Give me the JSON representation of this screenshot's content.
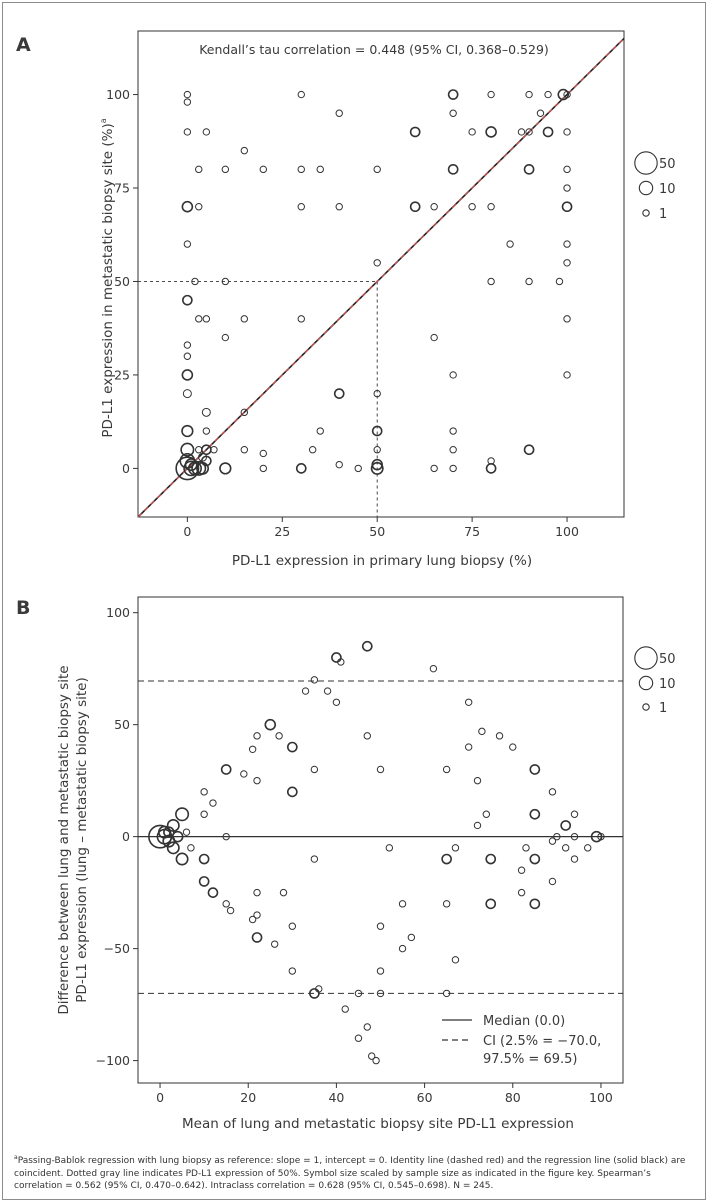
{
  "chart_data": [
    {
      "panel": "A",
      "type": "scatter",
      "title": "Kendall’s tau correlation = 0.448 (95% CI, 0.368–0.529)",
      "xlabel": "PD-L1 expression in primary lung biopsy (%)",
      "ylabel": "PD-L1 expression in metastatic biopsy site (%)",
      "ylabel_sup": "a",
      "xlim": [
        -13,
        115
      ],
      "ylim": [
        -13,
        117
      ],
      "xticks": [
        0,
        25,
        50,
        75,
        100
      ],
      "yticks": [
        0,
        25,
        50,
        75,
        100
      ],
      "reference_x": 50,
      "reference_y": 50,
      "identity_line": "y = x (dashed red), regression line (solid black)",
      "size_legend": [
        {
          "label": "50",
          "n": 50
        },
        {
          "label": "10",
          "n": 10
        },
        {
          "label": "1",
          "n": 1
        }
      ],
      "points": [
        [
          0,
          100,
          1
        ],
        [
          0,
          98,
          1
        ],
        [
          0,
          90,
          1
        ],
        [
          0,
          70,
          4
        ],
        [
          0,
          60,
          1
        ],
        [
          0,
          45,
          3
        ],
        [
          0,
          33,
          1
        ],
        [
          0,
          30,
          1
        ],
        [
          0,
          25,
          4
        ],
        [
          0,
          20,
          2
        ],
        [
          0,
          10,
          5
        ],
        [
          0,
          5,
          8
        ],
        [
          0,
          2,
          12
        ],
        [
          0,
          0,
          50
        ],
        [
          1,
          0,
          12
        ],
        [
          1,
          1,
          6
        ],
        [
          2,
          0,
          8
        ],
        [
          2,
          50,
          1
        ],
        [
          3,
          0,
          10
        ],
        [
          3,
          5,
          1
        ],
        [
          3,
          40,
          1
        ],
        [
          3,
          70,
          1
        ],
        [
          3,
          80,
          1
        ],
        [
          4,
          0,
          6
        ],
        [
          4,
          3,
          2
        ],
        [
          5,
          2,
          3
        ],
        [
          5,
          5,
          3
        ],
        [
          5,
          10,
          1
        ],
        [
          5,
          15,
          2
        ],
        [
          5,
          40,
          1
        ],
        [
          5,
          90,
          1
        ],
        [
          7,
          5,
          1
        ],
        [
          10,
          0,
          5
        ],
        [
          10,
          35,
          1
        ],
        [
          10,
          50,
          1
        ],
        [
          10,
          80,
          1
        ],
        [
          15,
          5,
          1
        ],
        [
          15,
          15,
          1
        ],
        [
          15,
          40,
          1
        ],
        [
          15,
          85,
          1
        ],
        [
          20,
          0,
          1
        ],
        [
          20,
          4,
          1
        ],
        [
          20,
          80,
          1
        ],
        [
          30,
          0,
          3
        ],
        [
          30,
          40,
          1
        ],
        [
          30,
          70,
          1
        ],
        [
          30,
          80,
          1
        ],
        [
          30,
          100,
          1
        ],
        [
          33,
          5,
          1
        ],
        [
          35,
          10,
          1
        ],
        [
          35,
          80,
          1
        ],
        [
          40,
          1,
          1
        ],
        [
          40,
          20,
          3
        ],
        [
          40,
          70,
          1
        ],
        [
          40,
          95,
          1
        ],
        [
          45,
          0,
          1
        ],
        [
          50,
          0,
          6
        ],
        [
          50,
          1,
          4
        ],
        [
          50,
          5,
          1
        ],
        [
          50,
          10,
          3
        ],
        [
          50,
          20,
          1
        ],
        [
          50,
          55,
          1
        ],
        [
          50,
          80,
          1
        ],
        [
          60,
          70,
          3
        ],
        [
          60,
          90,
          3
        ],
        [
          65,
          0,
          1
        ],
        [
          65,
          35,
          1
        ],
        [
          65,
          70,
          1
        ],
        [
          70,
          0,
          1
        ],
        [
          70,
          5,
          1
        ],
        [
          70,
          10,
          1
        ],
        [
          70,
          25,
          1
        ],
        [
          70,
          80,
          3
        ],
        [
          70,
          95,
          1
        ],
        [
          70,
          100,
          3
        ],
        [
          75,
          70,
          1
        ],
        [
          75,
          90,
          1
        ],
        [
          80,
          0,
          3
        ],
        [
          80,
          2,
          1
        ],
        [
          80,
          50,
          1
        ],
        [
          80,
          70,
          1
        ],
        [
          80,
          90,
          4
        ],
        [
          80,
          100,
          1
        ],
        [
          85,
          60,
          1
        ],
        [
          88,
          90,
          1
        ],
        [
          90,
          5,
          3
        ],
        [
          90,
          50,
          1
        ],
        [
          90,
          80,
          3
        ],
        [
          90,
          90,
          1
        ],
        [
          90,
          100,
          1
        ],
        [
          93,
          95,
          1
        ],
        [
          95,
          90,
          3
        ],
        [
          95,
          100,
          1
        ],
        [
          98,
          50,
          1
        ],
        [
          99,
          100,
          4
        ],
        [
          100,
          25,
          1
        ],
        [
          100,
          40,
          1
        ],
        [
          100,
          55,
          1
        ],
        [
          100,
          60,
          1
        ],
        [
          100,
          70,
          3
        ],
        [
          100,
          75,
          1
        ],
        [
          100,
          80,
          1
        ],
        [
          100,
          90,
          1
        ],
        [
          100,
          100,
          1
        ]
      ]
    },
    {
      "panel": "B",
      "type": "scatter",
      "xlabel": "Mean of lung and metastatic biopsy site PD-L1 expression",
      "ylabel_line1": "Difference between lung and metastatic biopsy site",
      "ylabel_line2": "PD-L1 expression (lung – metastatic biopsy site)",
      "xlim": [
        -5,
        105
      ],
      "ylim": [
        -110,
        107
      ],
      "xticks": [
        0,
        20,
        40,
        60,
        80,
        100
      ],
      "yticks": [
        -100,
        -50,
        0,
        50,
        100
      ],
      "median": 0.0,
      "ci_low": -70.0,
      "ci_high": 69.5,
      "legend": [
        {
          "style": "solid",
          "label": "Median (0.0)"
        },
        {
          "style": "dashed",
          "label": "CI (2.5% = −70.0,"
        },
        {
          "style": "none",
          "label": "97.5% = 69.5)"
        }
      ],
      "size_legend": [
        {
          "label": "50",
          "n": 50
        },
        {
          "label": "10",
          "n": 10
        },
        {
          "label": "1",
          "n": 1
        }
      ],
      "points": [
        [
          0,
          0,
          50
        ],
        [
          1,
          0,
          12
        ],
        [
          1,
          2,
          6
        ],
        [
          2,
          -2,
          6
        ],
        [
          2,
          2,
          4
        ],
        [
          3,
          5,
          6
        ],
        [
          3,
          -5,
          6
        ],
        [
          4,
          0,
          4
        ],
        [
          5,
          10,
          8
        ],
        [
          5,
          -10,
          6
        ],
        [
          6,
          2,
          1
        ],
        [
          7,
          -5,
          1
        ],
        [
          10,
          20,
          1
        ],
        [
          10,
          10,
          1
        ],
        [
          10,
          -10,
          3
        ],
        [
          10,
          -20,
          3
        ],
        [
          12,
          15,
          1
        ],
        [
          12,
          -25,
          3
        ],
        [
          15,
          30,
          3
        ],
        [
          15,
          0,
          1
        ],
        [
          15,
          -30,
          1
        ],
        [
          16,
          -33,
          1
        ],
        [
          19,
          28,
          1
        ],
        [
          21,
          39,
          1
        ],
        [
          21,
          -37,
          1
        ],
        [
          22,
          25,
          1
        ],
        [
          22,
          45,
          1
        ],
        [
          22,
          -25,
          1
        ],
        [
          22,
          -35,
          1
        ],
        [
          22,
          -45,
          3
        ],
        [
          25,
          50,
          4
        ],
        [
          26,
          -48,
          1
        ],
        [
          27,
          45,
          1
        ],
        [
          28,
          -25,
          1
        ],
        [
          30,
          40,
          3
        ],
        [
          30,
          20,
          3
        ],
        [
          30,
          -40,
          1
        ],
        [
          30,
          -60,
          1
        ],
        [
          33,
          65,
          1
        ],
        [
          35,
          70,
          1
        ],
        [
          35,
          30,
          1
        ],
        [
          35,
          -10,
          1
        ],
        [
          35,
          -70,
          3
        ],
        [
          36,
          -68,
          1
        ],
        [
          38,
          65,
          1
        ],
        [
          40,
          80,
          3
        ],
        [
          40,
          60,
          1
        ],
        [
          41,
          78,
          1
        ],
        [
          42,
          -77,
          1
        ],
        [
          45,
          -70,
          1
        ],
        [
          45,
          -90,
          1
        ],
        [
          47,
          85,
          3
        ],
        [
          47,
          45,
          1
        ],
        [
          47,
          -85,
          1
        ],
        [
          48,
          -98,
          1
        ],
        [
          49,
          -100,
          1
        ],
        [
          50,
          30,
          1
        ],
        [
          50,
          -40,
          1
        ],
        [
          50,
          -60,
          1
        ],
        [
          50,
          -70,
          1
        ],
        [
          52,
          -5,
          1
        ],
        [
          55,
          -30,
          1
        ],
        [
          55,
          -50,
          1
        ],
        [
          57,
          -45,
          1
        ],
        [
          62,
          75,
          1
        ],
        [
          65,
          30,
          1
        ],
        [
          65,
          -10,
          3
        ],
        [
          65,
          -30,
          1
        ],
        [
          65,
          -70,
          1
        ],
        [
          67,
          -5,
          1
        ],
        [
          67,
          -55,
          1
        ],
        [
          70,
          60,
          1
        ],
        [
          70,
          40,
          1
        ],
        [
          72,
          25,
          1
        ],
        [
          72,
          5,
          1
        ],
        [
          73,
          47,
          1
        ],
        [
          74,
          10,
          1
        ],
        [
          75,
          -10,
          3
        ],
        [
          75,
          -30,
          3
        ],
        [
          77,
          45,
          1
        ],
        [
          80,
          40,
          1
        ],
        [
          82,
          -15,
          1
        ],
        [
          82,
          -25,
          1
        ],
        [
          83,
          -5,
          1
        ],
        [
          85,
          30,
          3
        ],
        [
          85,
          10,
          3
        ],
        [
          85,
          -10,
          3
        ],
        [
          85,
          -30,
          3
        ],
        [
          89,
          -2,
          1
        ],
        [
          89,
          -20,
          1
        ],
        [
          89,
          20,
          1
        ],
        [
          90,
          0,
          1
        ],
        [
          92,
          5,
          3
        ],
        [
          92,
          -5,
          1
        ],
        [
          94,
          10,
          1
        ],
        [
          94,
          0,
          1
        ],
        [
          94,
          -10,
          1
        ],
        [
          97,
          -5,
          1
        ],
        [
          99,
          0,
          4
        ],
        [
          100,
          0,
          1
        ]
      ]
    }
  ],
  "footnote": {
    "sup": "a",
    "text": "Passing-Bablok regression with lung biopsy as reference: slope = 1, intercept = 0. Identity line (dashed red) and the regression line (solid black) are coincident. Dotted gray line indicates PD-L1 expression of 50%. Symbol size scaled by sample size as indicated in the figure key. Spearman’s correlation = 0.562 (95% CI, 0.470–0.642). Intraclass correlation = 0.628 (95% CI, 0.545–0.698). N = 245."
  }
}
